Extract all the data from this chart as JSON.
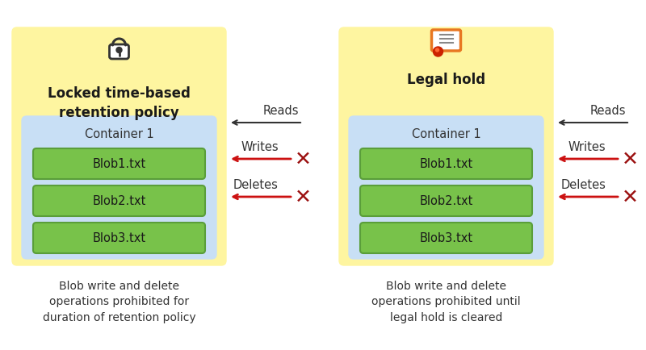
{
  "bg_color": "#ffffff",
  "yellow_bg": "#FEF5A0",
  "blue_bg": "#C8DFF5",
  "green_box": "#78C24A",
  "green_border": "#5A9E3A",
  "panel1_title": "Locked time-based\nretention policy",
  "panel2_title": "Legal hold",
  "container_label": "Container 1",
  "blobs": [
    "Blob1.txt",
    "Blob2.txt",
    "Blob3.txt"
  ],
  "caption1": "Blob write and delete\noperations prohibited for\nduration of retention policy",
  "caption2": "Blob write and delete\noperations prohibited until\nlegal hold is cleared",
  "reads_label": "Reads",
  "writes_label": "Writes",
  "deletes_label": "Deletes",
  "arrow_black": "#333333",
  "arrow_red": "#CC1111",
  "x_color": "#9B1010",
  "title_fontsize": 12,
  "label_fontsize": 10.5,
  "blob_fontsize": 10.5,
  "caption_fontsize": 10,
  "container_fontsize": 10.5
}
